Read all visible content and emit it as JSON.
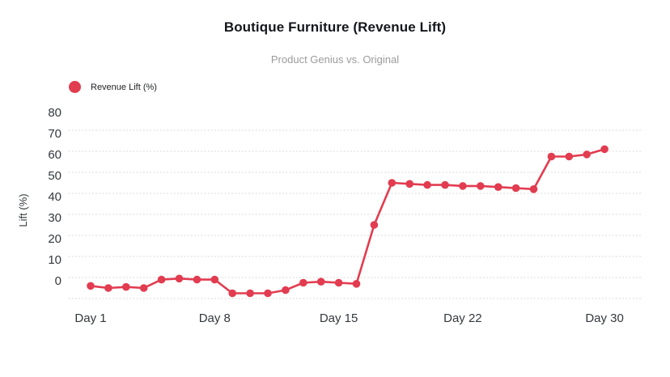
{
  "title": "Boutique Furniture (Revenue Lift)",
  "subtitle": "Product Genius vs. Original",
  "legend": [
    {
      "label": "Revenue Lift (%)",
      "color": "#e23c50"
    }
  ],
  "colors": {
    "series_red": "#e23c50",
    "gridline": "#e0e0e0",
    "axis_text": "#33383d",
    "title_text": "#14171b",
    "subtitle_text": "#9b9b9b",
    "background": "#ffffff"
  },
  "chart_data": {
    "type": "line",
    "title": "Boutique Furniture (Revenue Lift)",
    "subtitle": "Product Genius vs. Original",
    "xlabel": "",
    "ylabel": "Lift (%)",
    "x": [
      1,
      2,
      3,
      4,
      5,
      6,
      7,
      8,
      9,
      10,
      11,
      12,
      13,
      14,
      15,
      16,
      17,
      18,
      19,
      20,
      21,
      22,
      23,
      24,
      25,
      26,
      27,
      28,
      29,
      30
    ],
    "series": [
      {
        "name": "Revenue Lift (%)",
        "color": "#e23c50",
        "values": [
          -4,
          -5,
          -4.5,
          -5,
          -1,
          -0.5,
          -1,
          -1,
          -7.5,
          -7.5,
          -7.5,
          -6,
          -2.5,
          -2,
          -2.5,
          -3,
          25,
          45,
          44.5,
          44,
          44,
          43.5,
          43.5,
          43,
          42.5,
          42,
          57.5,
          57.5,
          58.5,
          61
        ]
      }
    ],
    "xticks": [
      {
        "day": 1,
        "label": "Day 1"
      },
      {
        "day": 8,
        "label": "Day 8"
      },
      {
        "day": 15,
        "label": "Day 15"
      },
      {
        "day": 22,
        "label": "Day 22"
      },
      {
        "day": 30,
        "label": "Day 30"
      }
    ],
    "yticks": [
      80,
      70,
      60,
      50,
      40,
      30,
      20,
      10,
      0
    ],
    "grid_values": [
      70,
      60,
      50,
      40,
      30,
      20,
      10,
      0,
      -10
    ],
    "ylim": [
      -11,
      83
    ],
    "grid": "horizontal-dotted",
    "legend_position": "top-left",
    "markers": true
  }
}
